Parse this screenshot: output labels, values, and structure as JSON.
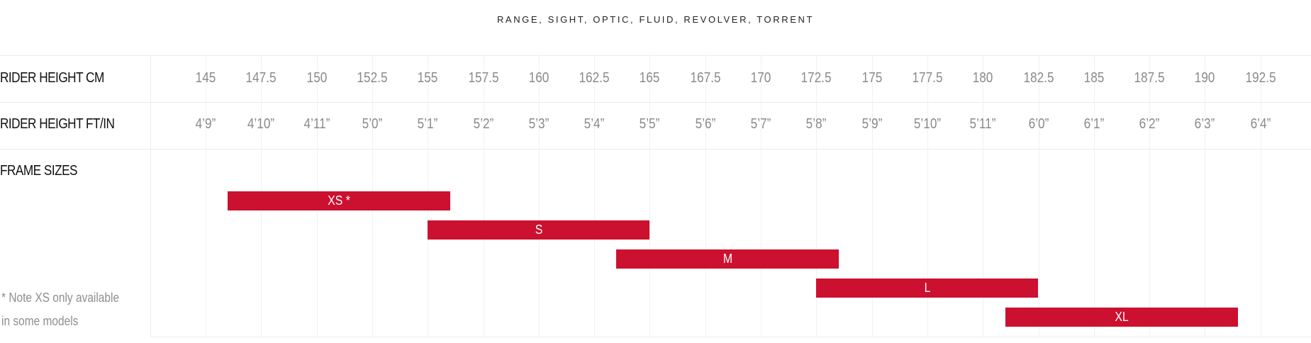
{
  "title": "RANGE, SIGHT, OPTIC, FLUID, REVOLVER, TORRENT",
  "row_labels": {
    "cm": "RIDER HEIGHT CM",
    "ftin": "RIDER HEIGHT FT/IN",
    "frames": "FRAME SIZES"
  },
  "note": {
    "line1": "* Note XS only available",
    "line2": "in some models"
  },
  "colors": {
    "bar": "#cc1030",
    "bar_text": "#ffffff",
    "tick_text": "#8a8a8a"
  },
  "chart_data": {
    "type": "bar",
    "orientation": "horizontal-range",
    "x_unit": "cm",
    "xlim": [
      145,
      192.5
    ],
    "grid": true,
    "cm_ticks": [
      "145",
      "147.5",
      "150",
      "152.5",
      "155",
      "157.5",
      "160",
      "162.5",
      "165",
      "167.5",
      "170",
      "172.5",
      "175",
      "177.5",
      "180",
      "182.5",
      "185",
      "187.5",
      "190",
      "192.5"
    ],
    "ftin_ticks": [
      "4’9”",
      "4’10”",
      "4’11”",
      "5’0”",
      "5’1”",
      "5’2”",
      "5’3”",
      "5’4”",
      "5’5”",
      "5’6”",
      "5’7”",
      "5’8”",
      "5’9”",
      "5’10”",
      "5’11”",
      "6’0”",
      "6’1”",
      "6’2”",
      "6’3”",
      "6’4”"
    ],
    "series": [
      {
        "label": "XS *",
        "start": 146,
        "end": 156
      },
      {
        "label": "S",
        "start": 155,
        "end": 165
      },
      {
        "label": "M",
        "start": 163.5,
        "end": 173.5
      },
      {
        "label": "L",
        "start": 172.5,
        "end": 182.5
      },
      {
        "label": "XL",
        "start": 181,
        "end": 191.5
      }
    ]
  }
}
